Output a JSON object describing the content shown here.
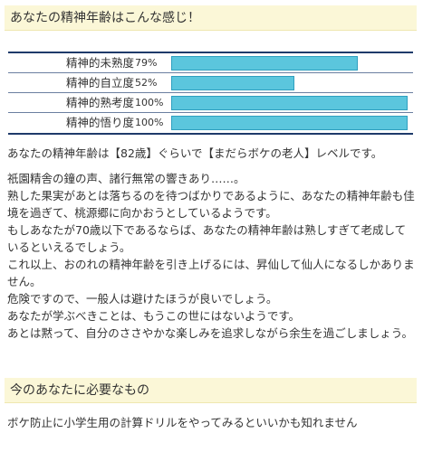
{
  "result_header": "あなたの精神年齢はこんな感じ！",
  "stats": [
    {
      "label": "精神的未熟度",
      "value_text": "79%",
      "percent": 79
    },
    {
      "label": "精神的自立度",
      "value_text": "52%",
      "percent": 52
    },
    {
      "label": "精神的熟考度",
      "value_text": "100%",
      "percent": 100
    },
    {
      "label": "精神的悟り度",
      "value_text": "100%",
      "percent": 100
    }
  ],
  "summary": "あなたの精神年齢は【82歳】ぐらいで【まだらボケの老人】レベルです。",
  "description": [
    "祇園精舎の鐘の声、諸行無常の響きあり……。",
    "熟した果実があとは落ちるのを待つばかりであるように、あなたの精神年齢も佳境を過ぎて、桃源郷に向かおうとしているようです。",
    "もしあなたが70歳以下であるならば、あなたの精神年齢は熟しすぎて老成しているといえるでしょう。",
    "これ以上、おのれの精神年齢を引き上げるには、昇仙して仙人になるしかありません。",
    "危険ですので、一般人は避けたほうが良いでしょう。",
    "あなたが学ぶべきことは、もうこの世にはないようです。",
    "あとは黙って、自分のささやかな楽しみを追求しながら余生を過ごしましょう。"
  ],
  "needs_header": "今のあなたに必要なもの",
  "advice": "ボケ防止に小学生用の計算ドリルをやってみるといいかも知れません",
  "colors": {
    "header_bg": "#fbf7d7",
    "bar_fill": "#5bc6dd",
    "table_rule": "#1e3a6a"
  }
}
